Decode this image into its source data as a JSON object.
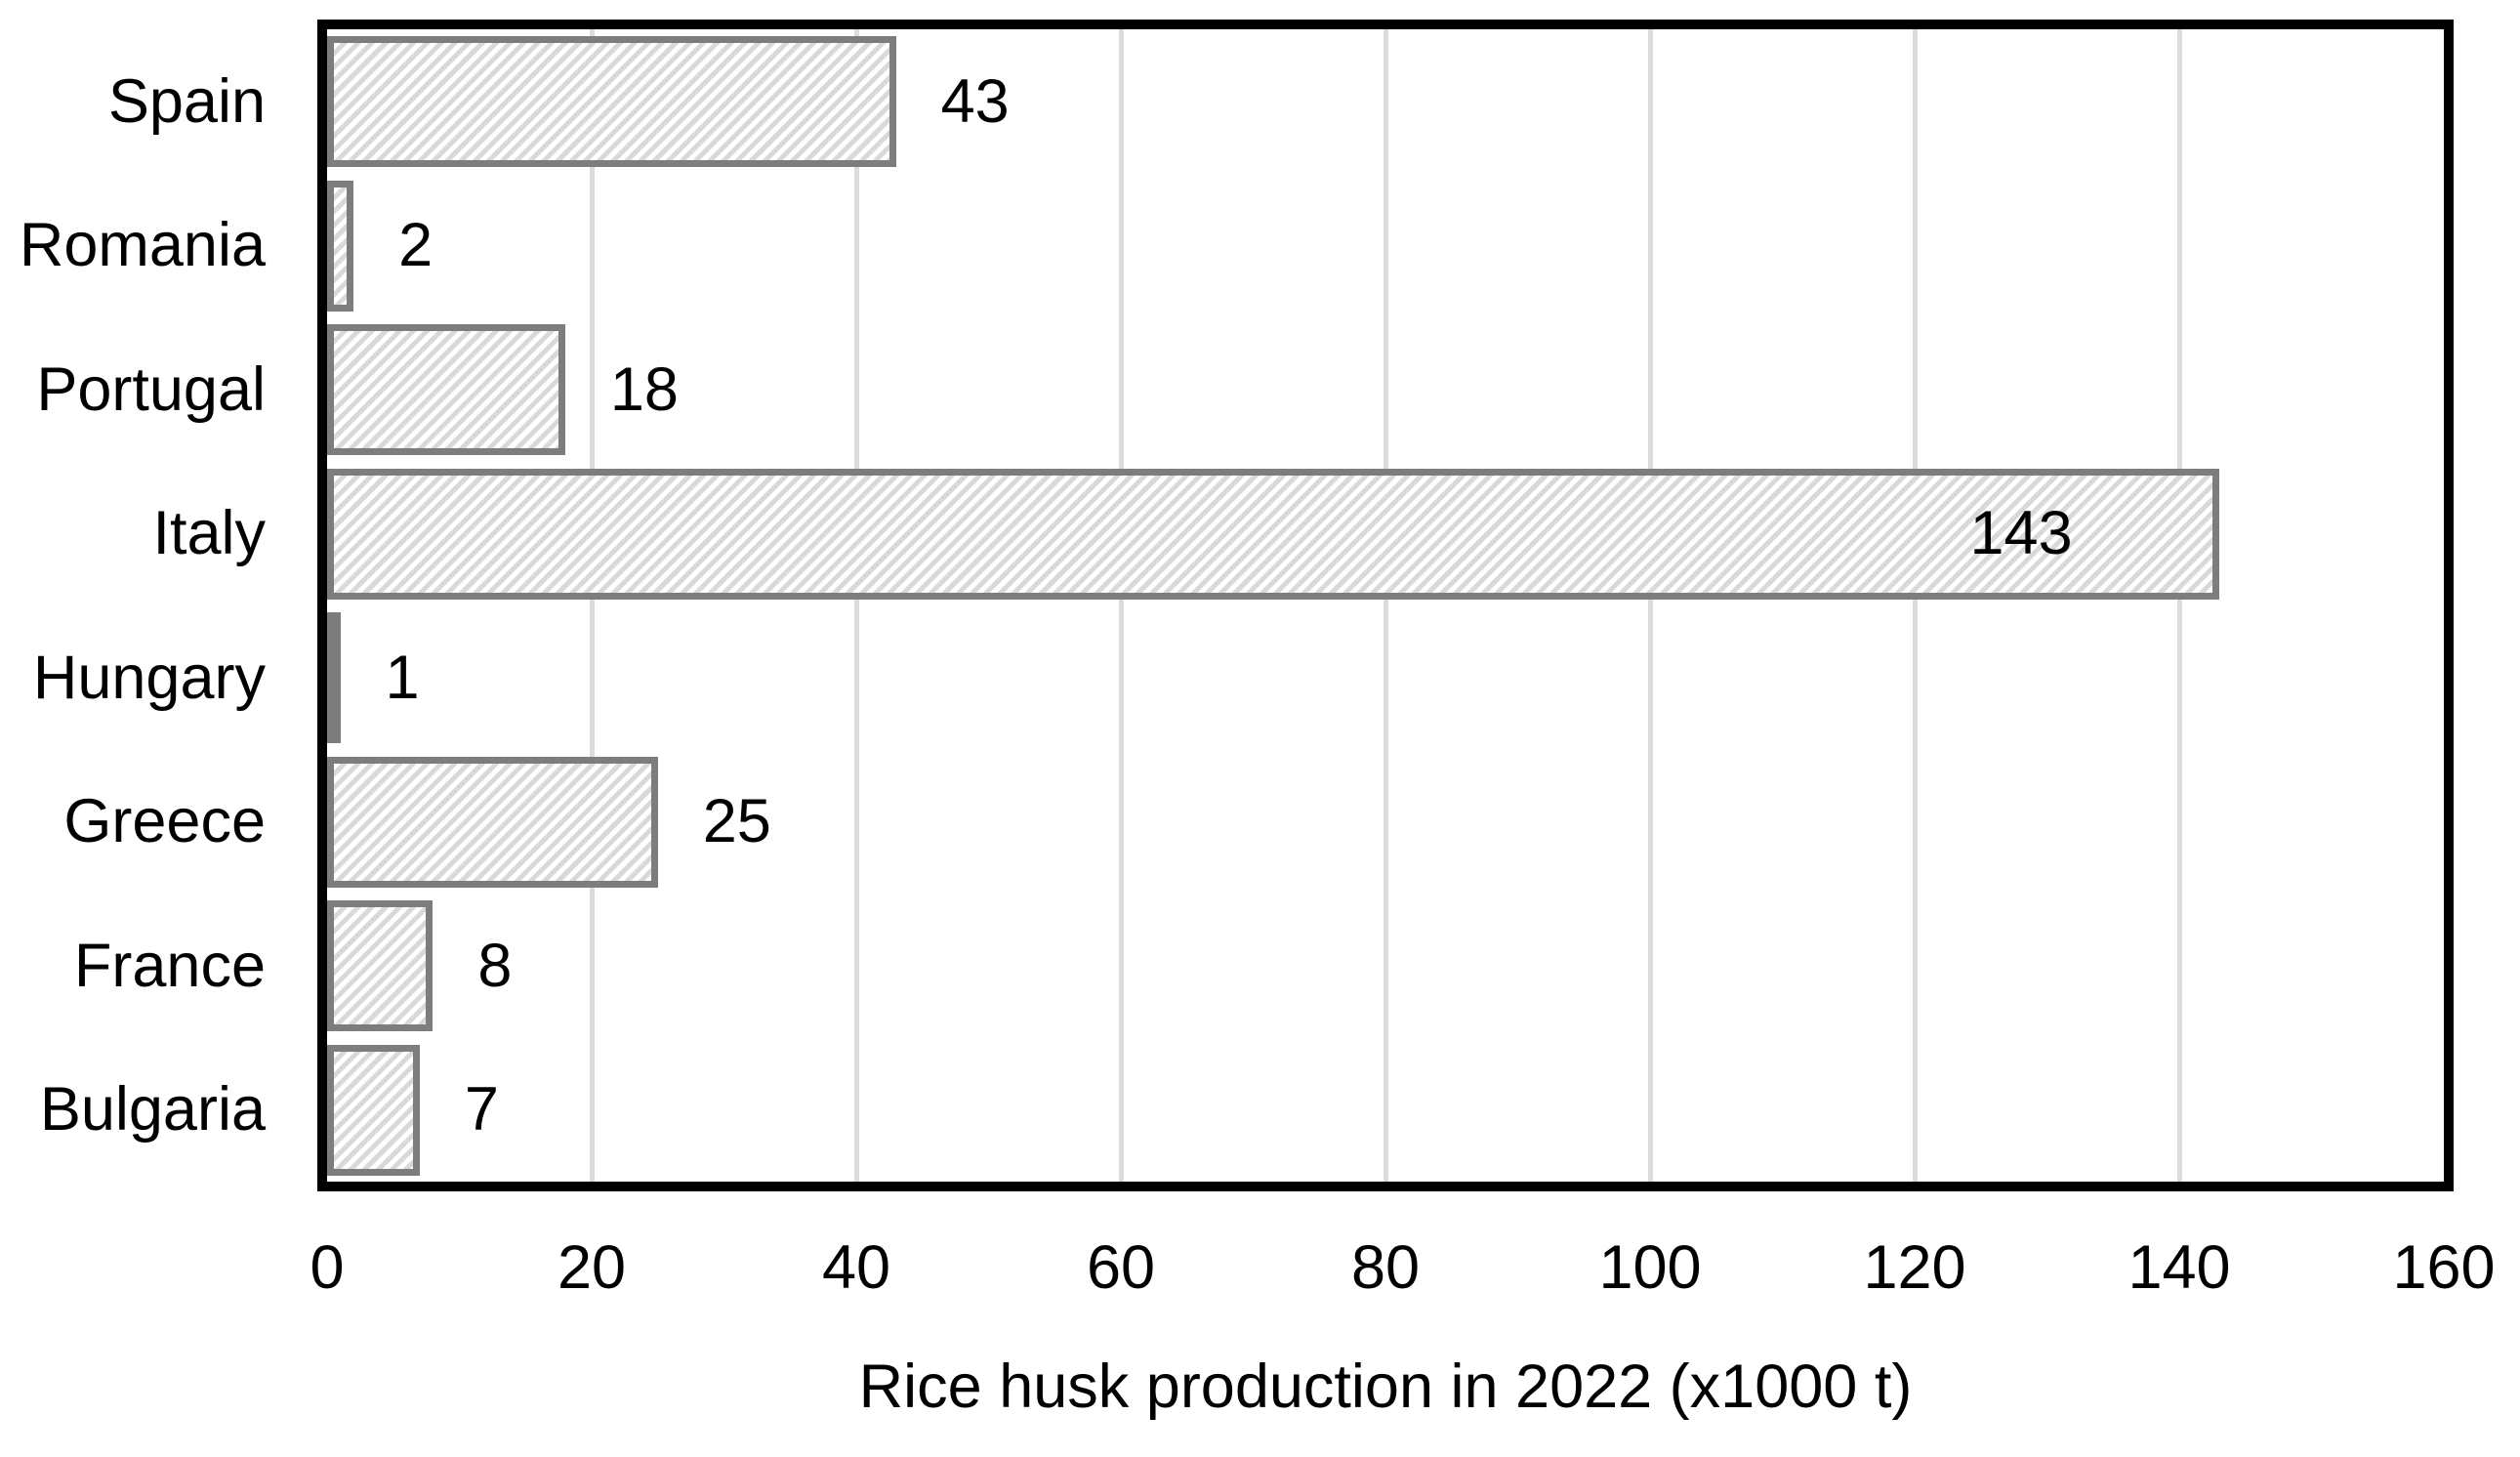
{
  "chart_data": {
    "type": "bar",
    "orientation": "horizontal",
    "title": "",
    "xlabel": "Rice husk production in 2022 (x1000 t)",
    "ylabel": "",
    "categories": [
      "Spain",
      "Romania",
      "Portugal",
      "Italy",
      "Hungary",
      "Greece",
      "France",
      "Bulgaria"
    ],
    "values": [
      43,
      2,
      18,
      143,
      1,
      25,
      8,
      7
    ],
    "value_labels": [
      "43",
      "2",
      "18",
      "143",
      "1",
      "25",
      "8",
      "7"
    ],
    "value_label_inside": [
      false,
      false,
      false,
      true,
      false,
      false,
      false,
      false
    ],
    "xlim": [
      0,
      160
    ],
    "xticks": [
      0,
      20,
      40,
      60,
      80,
      100,
      120,
      140,
      160
    ],
    "grid": "vertical",
    "legend": "none",
    "bar_style": "diagonal-hatch-forward",
    "colors": {
      "background": "#ffffff",
      "bar_fill": "#ffffff",
      "bar_hatch": "#d9d9d9",
      "bar_border": "#7d7d7d",
      "gridline": "#dcdcdc",
      "plot_border": "#000000",
      "text": "#000000"
    }
  }
}
